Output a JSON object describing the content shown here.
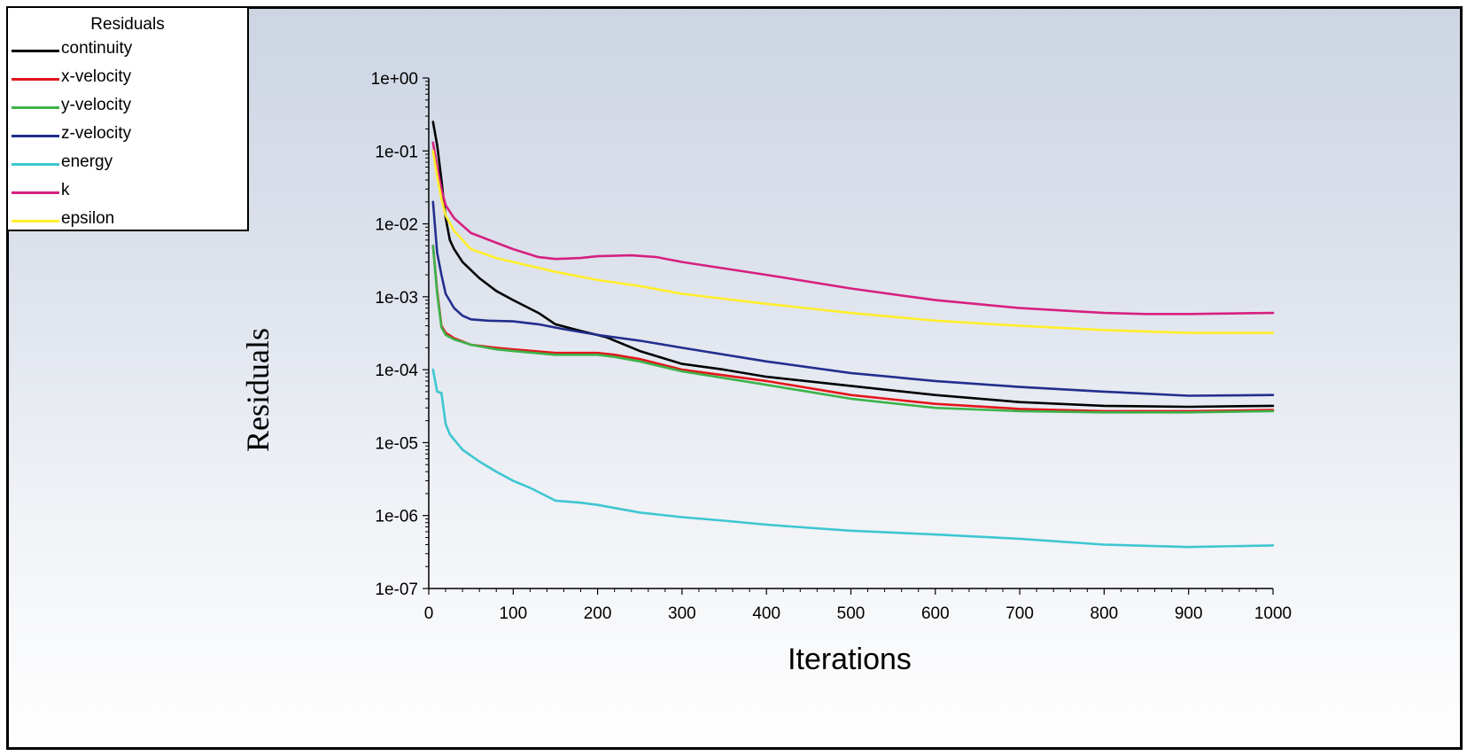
{
  "chart_data": {
    "type": "line",
    "xlabel": "Iterations",
    "ylabel": "Residuals",
    "xlim": [
      0,
      1000
    ],
    "ylim": [
      1e-07,
      1
    ],
    "yscale": "log",
    "x_ticks": [
      "0",
      "100",
      "200",
      "300",
      "400",
      "500",
      "600",
      "700",
      "800",
      "900",
      "1000"
    ],
    "y_ticks": [
      "1e+00",
      "1e-01",
      "1e-02",
      "1e-03",
      "1e-04",
      "1e-05",
      "1e-06",
      "1e-07"
    ],
    "legend": {
      "title": "Residuals",
      "placement": "top-left"
    },
    "series": [
      {
        "name": "continuity",
        "color": "#000000",
        "x": [
          5,
          10,
          15,
          20,
          25,
          30,
          40,
          60,
          80,
          100,
          130,
          150,
          180,
          210,
          250,
          300,
          350,
          400,
          500,
          600,
          700,
          800,
          900,
          1000
        ],
        "y": [
          0.25,
          0.12,
          0.04,
          0.012,
          0.006,
          0.0045,
          0.003,
          0.0018,
          0.0012,
          0.0009,
          0.0006,
          0.00042,
          0.00034,
          0.00028,
          0.00018,
          0.00012,
          0.0001,
          8e-05,
          6e-05,
          4.5e-05,
          3.6e-05,
          3.2e-05,
          3.1e-05,
          3.2e-05
        ]
      },
      {
        "name": "x-velocity",
        "color": "#e4151b",
        "x": [
          5,
          10,
          15,
          20,
          30,
          50,
          80,
          100,
          150,
          200,
          220,
          250,
          300,
          400,
          500,
          600,
          700,
          800,
          900,
          1000
        ],
        "y": [
          0.005,
          0.0012,
          0.0004,
          0.00032,
          0.00027,
          0.00022,
          0.0002,
          0.00019,
          0.00017,
          0.00017,
          0.00016,
          0.00014,
          0.0001,
          7e-05,
          4.5e-05,
          3.4e-05,
          2.9e-05,
          2.7e-05,
          2.7e-05,
          2.8e-05
        ]
      },
      {
        "name": "y-velocity",
        "color": "#3cb34a",
        "x": [
          5,
          10,
          15,
          20,
          30,
          50,
          80,
          100,
          150,
          200,
          220,
          250,
          300,
          400,
          500,
          600,
          700,
          800,
          900,
          1000
        ],
        "y": [
          0.005,
          0.0011,
          0.00038,
          0.0003,
          0.00026,
          0.00022,
          0.00019,
          0.00018,
          0.00016,
          0.00016,
          0.00015,
          0.00013,
          9.5e-05,
          6.2e-05,
          4e-05,
          3e-05,
          2.7e-05,
          2.6e-05,
          2.6e-05,
          2.7e-05
        ]
      },
      {
        "name": "z-velocity",
        "color": "#232e8e",
        "x": [
          5,
          10,
          15,
          20,
          30,
          40,
          50,
          70,
          100,
          130,
          160,
          200,
          250,
          300,
          400,
          500,
          600,
          700,
          800,
          900,
          1000
        ],
        "y": [
          0.02,
          0.004,
          0.002,
          0.0011,
          0.0007,
          0.00055,
          0.00049,
          0.00047,
          0.00046,
          0.00042,
          0.00036,
          0.0003,
          0.00025,
          0.0002,
          0.00013,
          9e-05,
          7e-05,
          5.8e-05,
          5e-05,
          4.4e-05,
          4.5e-05
        ]
      },
      {
        "name": "energy",
        "color": "#3ec6d2",
        "x": [
          5,
          10,
          15,
          20,
          25,
          30,
          40,
          60,
          80,
          100,
          120,
          150,
          180,
          200,
          250,
          300,
          350,
          400,
          450,
          500,
          600,
          700,
          800,
          900,
          1000
        ],
        "y": [
          0.0001,
          5e-05,
          4.8e-05,
          1.8e-05,
          1.3e-05,
          1.1e-05,
          8e-06,
          5.5e-06,
          4e-06,
          3e-06,
          2.4e-06,
          1.6e-06,
          1.5e-06,
          1.4e-06,
          1.1e-06,
          9.5e-07,
          8.5e-07,
          7.5e-07,
          6.8e-07,
          6.2e-07,
          5.5e-07,
          4.8e-07,
          4e-07,
          3.7e-07,
          3.9e-07
        ]
      },
      {
        "name": "k",
        "color": "#d6207f",
        "x": [
          5,
          10,
          15,
          20,
          30,
          50,
          80,
          100,
          130,
          150,
          180,
          200,
          240,
          270,
          300,
          400,
          500,
          600,
          700,
          800,
          850,
          900,
          1000
        ],
        "y": [
          0.13,
          0.06,
          0.03,
          0.018,
          0.012,
          0.0075,
          0.0055,
          0.0045,
          0.0035,
          0.0033,
          0.0034,
          0.0036,
          0.0037,
          0.0035,
          0.003,
          0.002,
          0.0013,
          0.0009,
          0.0007,
          0.0006,
          0.00058,
          0.00058,
          0.0006
        ]
      },
      {
        "name": "epsilon",
        "color": "#ffee2a",
        "x": [
          5,
          10,
          15,
          20,
          30,
          50,
          80,
          100,
          150,
          200,
          250,
          300,
          400,
          500,
          600,
          700,
          800,
          900,
          1000
        ],
        "y": [
          0.1,
          0.045,
          0.022,
          0.013,
          0.008,
          0.0045,
          0.0034,
          0.003,
          0.0022,
          0.0017,
          0.0014,
          0.0011,
          0.0008,
          0.0006,
          0.00047,
          0.0004,
          0.00035,
          0.00032,
          0.00032
        ]
      }
    ]
  }
}
